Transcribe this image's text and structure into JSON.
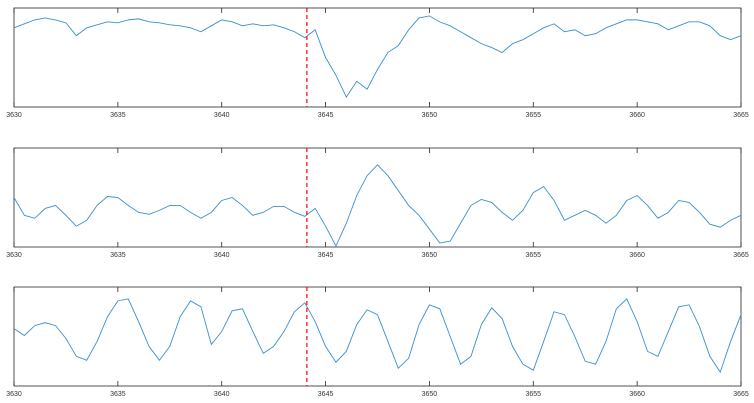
{
  "chart_data": [
    {
      "type": "line",
      "xlim": [
        3630,
        3665
      ],
      "ylim": [
        0,
        1
      ],
      "xticks": [
        3630,
        3635,
        3640,
        3645,
        3650,
        3655,
        3660,
        3665
      ],
      "vline": {
        "x": 3644.1,
        "color": "#ff0000"
      },
      "series": [
        {
          "color": "#3b8fd0",
          "x": [
            3630,
            3630.5,
            3631,
            3631.5,
            3632,
            3632.5,
            3633,
            3633.5,
            3634,
            3634.5,
            3635,
            3635.5,
            3636,
            3636.5,
            3637,
            3637.5,
            3638,
            3638.5,
            3639,
            3639.5,
            3640,
            3640.5,
            3641,
            3641.5,
            3642,
            3642.5,
            3643,
            3643.5,
            3644,
            3644.5,
            3645,
            3645.5,
            3646,
            3646.5,
            3647,
            3647.5,
            3648,
            3648.5,
            3649,
            3649.5,
            3650,
            3650.5,
            3651,
            3651.5,
            3652,
            3652.5,
            3653,
            3653.5,
            3654,
            3654.5,
            3655,
            3655.5,
            3656,
            3656.5,
            3657,
            3657.5,
            3658,
            3658.5,
            3659,
            3659.5,
            3660,
            3660.5,
            3661,
            3661.5,
            3662,
            3662.5,
            3663,
            3663.5,
            3664,
            3664.5,
            3665
          ],
          "values": [
            0.8,
            0.84,
            0.88,
            0.9,
            0.88,
            0.85,
            0.72,
            0.8,
            0.83,
            0.86,
            0.85,
            0.88,
            0.89,
            0.86,
            0.85,
            0.83,
            0.82,
            0.8,
            0.76,
            0.82,
            0.88,
            0.86,
            0.82,
            0.84,
            0.82,
            0.83,
            0.8,
            0.76,
            0.7,
            0.78,
            0.5,
            0.32,
            0.1,
            0.26,
            0.18,
            0.38,
            0.55,
            0.62,
            0.78,
            0.9,
            0.92,
            0.86,
            0.82,
            0.76,
            0.7,
            0.64,
            0.6,
            0.55,
            0.64,
            0.68,
            0.74,
            0.8,
            0.84,
            0.76,
            0.78,
            0.72,
            0.74,
            0.8,
            0.84,
            0.88,
            0.88,
            0.86,
            0.84,
            0.78,
            0.82,
            0.86,
            0.86,
            0.82,
            0.72,
            0.68,
            0.72
          ]
        }
      ]
    },
    {
      "type": "line",
      "xlim": [
        3630,
        3665
      ],
      "ylim": [
        0,
        1
      ],
      "xticks": [
        3630,
        3635,
        3640,
        3645,
        3650,
        3655,
        3660,
        3665
      ],
      "vline": {
        "x": 3644.1,
        "color": "#ff0000"
      },
      "series": [
        {
          "color": "#3b8fd0",
          "x": [
            3630,
            3630.5,
            3631,
            3631.5,
            3632,
            3632.5,
            3633,
            3633.5,
            3634,
            3634.5,
            3635,
            3635.5,
            3636,
            3636.5,
            3637,
            3637.5,
            3638,
            3638.5,
            3639,
            3639.5,
            3640,
            3640.5,
            3641,
            3641.5,
            3642,
            3642.5,
            3643,
            3643.5,
            3644,
            3644.5,
            3645,
            3645.5,
            3646,
            3646.5,
            3647,
            3647.5,
            3648,
            3648.5,
            3649,
            3649.5,
            3650,
            3650.5,
            3651,
            3651.5,
            3652,
            3652.5,
            3653,
            3653.5,
            3654,
            3654.5,
            3655,
            3655.5,
            3656,
            3656.5,
            3657,
            3657.5,
            3658,
            3658.5,
            3659,
            3659.5,
            3660,
            3660.5,
            3661,
            3661.5,
            3662,
            3662.5,
            3663,
            3663.5,
            3664,
            3664.5,
            3665
          ],
          "values": [
            0.5,
            0.32,
            0.29,
            0.39,
            0.42,
            0.32,
            0.21,
            0.27,
            0.42,
            0.51,
            0.5,
            0.42,
            0.35,
            0.33,
            0.37,
            0.42,
            0.42,
            0.35,
            0.29,
            0.35,
            0.47,
            0.5,
            0.42,
            0.32,
            0.35,
            0.41,
            0.41,
            0.35,
            0.31,
            0.39,
            0.21,
            0.01,
            0.24,
            0.52,
            0.72,
            0.83,
            0.72,
            0.57,
            0.42,
            0.32,
            0.18,
            0.04,
            0.06,
            0.24,
            0.42,
            0.48,
            0.45,
            0.35,
            0.27,
            0.37,
            0.55,
            0.61,
            0.47,
            0.27,
            0.32,
            0.37,
            0.32,
            0.24,
            0.32,
            0.47,
            0.52,
            0.42,
            0.29,
            0.35,
            0.47,
            0.45,
            0.35,
            0.23,
            0.2,
            0.27,
            0.32
          ]
        }
      ]
    },
    {
      "type": "line",
      "xlim": [
        3630,
        3665
      ],
      "ylim": [
        0,
        1
      ],
      "xticks": [
        3630,
        3635,
        3640,
        3645,
        3650,
        3655,
        3660,
        3665
      ],
      "vline": {
        "x": 3644.1,
        "color": "#ff0000"
      },
      "series": [
        {
          "color": "#3b8fd0",
          "x": [
            3630,
            3630.5,
            3631,
            3631.5,
            3632,
            3632.5,
            3633,
            3633.5,
            3634,
            3634.5,
            3635,
            3635.5,
            3636,
            3636.5,
            3637,
            3637.5,
            3638,
            3638.5,
            3639,
            3639.5,
            3640,
            3640.5,
            3641,
            3641.5,
            3642,
            3642.5,
            3643,
            3643.5,
            3644,
            3644.5,
            3645,
            3645.5,
            3646,
            3646.5,
            3647,
            3647.5,
            3648,
            3648.5,
            3649,
            3649.5,
            3650,
            3650.5,
            3651,
            3651.5,
            3652,
            3652.5,
            3653,
            3653.5,
            3654,
            3654.5,
            3655,
            3655.5,
            3656,
            3656.5,
            3657,
            3657.5,
            3658,
            3658.5,
            3659,
            3659.5,
            3660,
            3660.5,
            3661,
            3661.5,
            3662,
            3662.5,
            3663,
            3663.5,
            3664,
            3664.5,
            3665
          ],
          "values": [
            0.58,
            0.51,
            0.61,
            0.64,
            0.61,
            0.48,
            0.3,
            0.26,
            0.45,
            0.7,
            0.86,
            0.88,
            0.65,
            0.4,
            0.26,
            0.4,
            0.7,
            0.86,
            0.8,
            0.42,
            0.55,
            0.76,
            0.78,
            0.55,
            0.33,
            0.4,
            0.55,
            0.75,
            0.84,
            0.65,
            0.4,
            0.24,
            0.35,
            0.62,
            0.77,
            0.72,
            0.45,
            0.18,
            0.28,
            0.62,
            0.82,
            0.78,
            0.5,
            0.22,
            0.3,
            0.62,
            0.79,
            0.68,
            0.4,
            0.22,
            0.16,
            0.45,
            0.75,
            0.72,
            0.5,
            0.25,
            0.22,
            0.45,
            0.78,
            0.88,
            0.65,
            0.35,
            0.3,
            0.55,
            0.8,
            0.82,
            0.6,
            0.3,
            0.14,
            0.45,
            0.72
          ]
        }
      ]
    }
  ]
}
